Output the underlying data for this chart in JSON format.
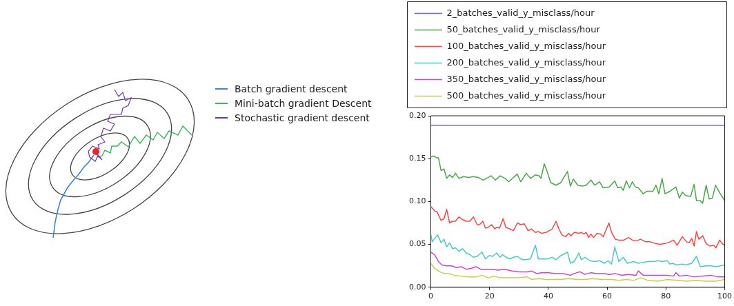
{
  "chart_data": [
    {
      "type": "other",
      "annotations": [
        "Batch gradient descent",
        "Mini-batch gradient Descent",
        "Stochastic gradient descent"
      ]
    },
    {
      "type": "line",
      "legend": "top",
      "grid": false,
      "marker": "none",
      "line_style": "solid",
      "xlim": [
        0,
        100
      ],
      "xticks": [
        0,
        20,
        40,
        60,
        80,
        100
      ],
      "ylim": [
        0,
        0.2
      ],
      "yticks": [
        {
          "value": 0,
          "label": "0.00"
        },
        {
          "value": 0.05,
          "label": "0.05"
        },
        {
          "value": 0.1,
          "label": "0.10"
        },
        {
          "value": 0.15,
          "label": "0.15"
        },
        {
          "value": 0.2,
          "label": "0.20"
        }
      ],
      "series": [
        {
          "name": "2_batches_valid_y_misclass/hour",
          "color": "#6666ff",
          "x": [
            0,
            100
          ],
          "values": [
            0.189,
            0.189
          ]
        },
        {
          "name": "50_batches_valid_y_misclass/hour",
          "color": "#44aa44",
          "x": [
            0,
            1,
            2,
            2.6,
            3.5,
            4.5,
            5.4,
            6.4,
            7.4,
            8.4,
            9.6,
            11.2,
            12.9,
            14.5,
            16.2,
            17.8,
            19.5,
            20.5,
            22,
            23.6,
            25.3,
            26.5,
            29.4,
            30.6,
            32.5,
            33.9,
            35.6,
            36.8,
            37.5,
            38.6,
            39.4,
            40.8,
            42.6,
            44.2,
            46.5,
            47.5,
            48.5,
            50,
            51.6,
            52.9,
            54.5,
            55.8,
            57.4,
            58.7,
            60.7,
            62.6,
            63.6,
            64.7,
            65.5,
            66.5,
            67.6,
            68.6,
            69.6,
            70.6,
            72.3,
            73.5,
            75.6,
            76.6,
            77.6,
            78.7,
            79.7,
            81.4,
            83.4,
            84.6,
            85.6,
            86.7,
            88.4,
            89.6,
            90.4,
            91.7,
            92.5,
            93.7,
            94.7,
            95.8,
            96.9,
            98.3,
            100
          ],
          "values": [
            0.152,
            0.153,
            0.151,
            0.151,
            0.136,
            0.138,
            0.127,
            0.131,
            0.128,
            0.133,
            0.127,
            0.129,
            0.128,
            0.129,
            0.128,
            0.125,
            0.128,
            0.13,
            0.125,
            0.13,
            0.127,
            0.123,
            0.132,
            0.123,
            0.133,
            0.127,
            0.131,
            0.13,
            0.127,
            0.144,
            0.137,
            0.122,
            0.119,
            0.122,
            0.135,
            0.118,
            0.126,
            0.119,
            0.118,
            0.119,
            0.125,
            0.119,
            0.123,
            0.116,
            0.117,
            0.124,
            0.116,
            0.117,
            0.113,
            0.124,
            0.116,
            0.123,
            0.117,
            0.116,
            0.109,
            0.112,
            0.112,
            0.119,
            0.109,
            0.127,
            0.109,
            0.112,
            0.117,
            0.104,
            0.111,
            0.107,
            0.106,
            0.12,
            0.101,
            0.101,
            0.098,
            0.119,
            0.103,
            0.104,
            0.119,
            0.11,
            0.101
          ]
        },
        {
          "name": "100_batches_valid_y_misclass/hour",
          "color": "#ff4444",
          "x": [
            0,
            1.3,
            2.1,
            3.5,
            4.5,
            5.4,
            6.4,
            7.4,
            8.4,
            9.6,
            10.8,
            12,
            13.3,
            14.5,
            15.8,
            16.6,
            17.7,
            18.6,
            19.6,
            20.7,
            21.8,
            22.4,
            23.4,
            24.6,
            25.5,
            26.9,
            28.1,
            29.5,
            30.6,
            31.8,
            33.1,
            34.3,
            35.6,
            36.6,
            37.6,
            39.3,
            41.3,
            42.6,
            43.6,
            44.6,
            45.9,
            46.9,
            47.7,
            48.8,
            50.4,
            51.2,
            52.1,
            52.9,
            53.7,
            54.5,
            55.4,
            56.6,
            57.8,
            58.7,
            59.9,
            60.6,
            61.5,
            62.8,
            64,
            65.7,
            67.3,
            68.6,
            69.8,
            71.4,
            73.1,
            74.7,
            76.4,
            78,
            79.7,
            81.4,
            82.6,
            83.8,
            85.6,
            87,
            87.9,
            88.8,
            89.6,
            90.4,
            91.2,
            92.5,
            93.7,
            95,
            96.2,
            97,
            98.3,
            99.1,
            100
          ],
          "values": [
            0.094,
            0.089,
            0.088,
            0.078,
            0.08,
            0.091,
            0.075,
            0.077,
            0.077,
            0.082,
            0.079,
            0.077,
            0.077,
            0.082,
            0.073,
            0.073,
            0.077,
            0.069,
            0.07,
            0.073,
            0.068,
            0.07,
            0.069,
            0.08,
            0.07,
            0.068,
            0.066,
            0.075,
            0.073,
            0.074,
            0.066,
            0.068,
            0.064,
            0.065,
            0.063,
            0.064,
            0.068,
            0.077,
            0.068,
            0.061,
            0.059,
            0.063,
            0.06,
            0.064,
            0.063,
            0.064,
            0.062,
            0.064,
            0.058,
            0.062,
            0.058,
            0.063,
            0.062,
            0.059,
            0.069,
            0.075,
            0.064,
            0.056,
            0.055,
            0.055,
            0.058,
            0.055,
            0.054,
            0.056,
            0.053,
            0.053,
            0.051,
            0.05,
            0.051,
            0.053,
            0.055,
            0.049,
            0.059,
            0.053,
            0.052,
            0.057,
            0.048,
            0.065,
            0.056,
            0.06,
            0.051,
            0.048,
            0.049,
            0.046,
            0.055,
            0.051,
            0.049
          ]
        },
        {
          "name": "200_batches_valid_y_misclass/hour",
          "color": "#44cccc",
          "x": [
            0,
            0.5,
            2.3,
            3.5,
            4.5,
            5.4,
            6.4,
            7.4,
            8.4,
            9.6,
            10.8,
            12,
            13.3,
            14.5,
            15.8,
            17.4,
            18.6,
            19.9,
            21.1,
            22.4,
            23.6,
            24.4,
            25.7,
            26.9,
            28.1,
            29.5,
            30.6,
            31.8,
            33.9,
            35.6,
            36.6,
            38,
            39.7,
            41.3,
            42.6,
            43.8,
            46.5,
            47.5,
            48.8,
            50.4,
            51.2,
            52.5,
            54.1,
            55.8,
            57.4,
            59.1,
            60.3,
            61.5,
            62.6,
            64,
            65.5,
            66.9,
            69,
            70.6,
            72.3,
            73.9,
            76,
            77.2,
            78.9,
            80.5,
            81.4,
            82.2,
            83.8,
            85.5,
            86.7,
            88.8,
            90.4,
            91.7,
            93.7,
            95.4,
            97,
            100
          ],
          "values": [
            0.062,
            0.053,
            0.061,
            0.052,
            0.056,
            0.047,
            0.052,
            0.045,
            0.046,
            0.042,
            0.045,
            0.04,
            0.038,
            0.035,
            0.036,
            0.041,
            0.033,
            0.037,
            0.036,
            0.04,
            0.035,
            0.038,
            0.035,
            0.033,
            0.035,
            0.036,
            0.033,
            0.032,
            0.033,
            0.049,
            0.033,
            0.033,
            0.033,
            0.035,
            0.032,
            0.036,
            0.041,
            0.028,
            0.03,
            0.04,
            0.032,
            0.035,
            0.031,
            0.03,
            0.031,
            0.028,
            0.031,
            0.027,
            0.047,
            0.03,
            0.035,
            0.028,
            0.03,
            0.028,
            0.029,
            0.03,
            0.03,
            0.031,
            0.03,
            0.031,
            0.027,
            0.028,
            0.026,
            0.027,
            0.026,
            0.028,
            0.036,
            0.024,
            0.025,
            0.025,
            0.024,
            0.026
          ]
        },
        {
          "name": "350_batches_valid_y_misclass/hour",
          "color": "#cc44cc",
          "x": [
            0,
            1.3,
            2.6,
            3.8,
            5.4,
            7.1,
            8.7,
            10.4,
            12,
            13.7,
            15.3,
            17,
            19.5,
            21.1,
            22.8,
            25.2,
            27.7,
            30.2,
            32.7,
            34.3,
            36,
            37.6,
            40.1,
            42.6,
            45,
            47.5,
            48.8,
            50.7,
            52.5,
            54.5,
            56.6,
            59.1,
            60.7,
            62.8,
            64.8,
            67.3,
            69.8,
            70.6,
            72.3,
            74.7,
            77.2,
            80.5,
            82.6,
            83.4,
            84.6,
            87.1,
            89.6,
            92.1,
            95.4,
            97.8,
            100
          ],
          "values": [
            0.041,
            0.038,
            0.03,
            0.026,
            0.025,
            0.025,
            0.023,
            0.024,
            0.021,
            0.022,
            0.024,
            0.021,
            0.021,
            0.021,
            0.02,
            0.021,
            0.019,
            0.018,
            0.018,
            0.019,
            0.016,
            0.017,
            0.017,
            0.016,
            0.016,
            0.014,
            0.016,
            0.018,
            0.015,
            0.017,
            0.016,
            0.016,
            0.015,
            0.016,
            0.014,
            0.015,
            0.014,
            0.019,
            0.014,
            0.014,
            0.014,
            0.014,
            0.013,
            0.017,
            0.013,
            0.014,
            0.012,
            0.013,
            0.014,
            0.012,
            0.012
          ]
        },
        {
          "name": "500_batches_valid_y_misclass/hour",
          "color": "#cccc44",
          "x": [
            0,
            1.3,
            3,
            4.6,
            6.3,
            7.9,
            10.4,
            12.9,
            15.3,
            17.4,
            19.5,
            21.5,
            23.6,
            26.1,
            29.4,
            32.7,
            34.3,
            36.8,
            39.3,
            41.7,
            44.2,
            46.7,
            50,
            52.5,
            54.9,
            58.2,
            61.5,
            64,
            66.5,
            69,
            71.4,
            73.9,
            77.2,
            80.5,
            83.8,
            87.1,
            90.4,
            93.7,
            97,
            100
          ],
          "values": [
            0.028,
            0.022,
            0.018,
            0.016,
            0.016,
            0.014,
            0.013,
            0.012,
            0.012,
            0.014,
            0.011,
            0.013,
            0.011,
            0.011,
            0.011,
            0.012,
            0.009,
            0.01,
            0.009,
            0.009,
            0.009,
            0.01,
            0.009,
            0.009,
            0.01,
            0.009,
            0.009,
            0.008,
            0.009,
            0.008,
            0.011,
            0.008,
            0.007,
            0.009,
            0.008,
            0.007,
            0.008,
            0.007,
            0.007,
            0.009
          ]
        }
      ]
    }
  ]
}
